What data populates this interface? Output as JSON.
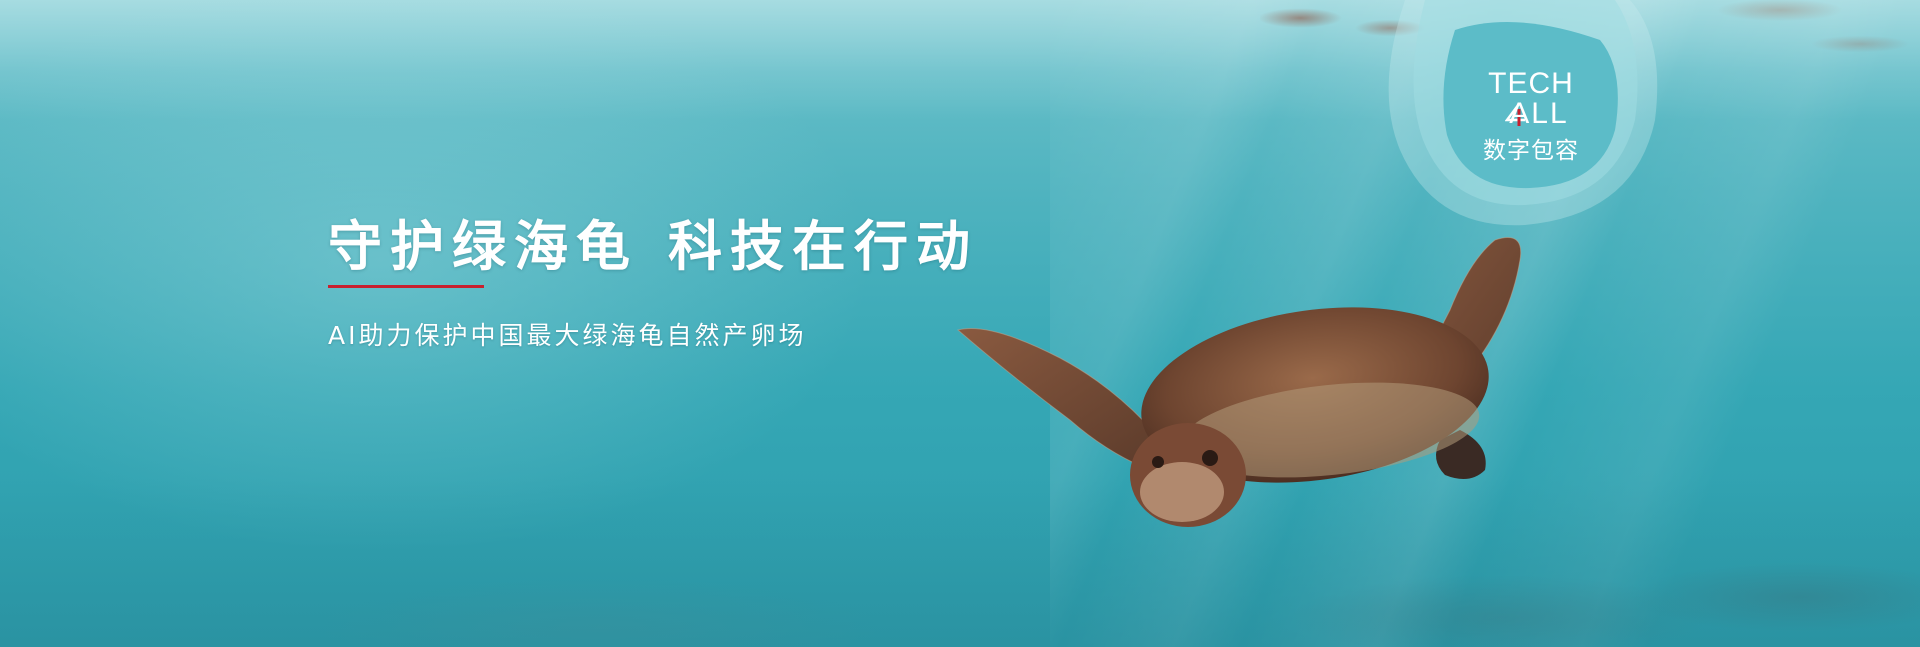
{
  "banner": {
    "headline_part1": "守护绿海龟",
    "headline_part2": "科技在行动",
    "subheadline": "AI助力保护中国最大绿海龟自然产卵场"
  },
  "logo": {
    "line1": "TECH",
    "line2": "ALL",
    "line3": "数字包容",
    "accent_color": "#c8202f"
  },
  "colors": {
    "accent_rule": "#c8202f",
    "ocean": "#3aa9b7"
  },
  "image": {
    "subject": "sea-turtle-icon"
  }
}
